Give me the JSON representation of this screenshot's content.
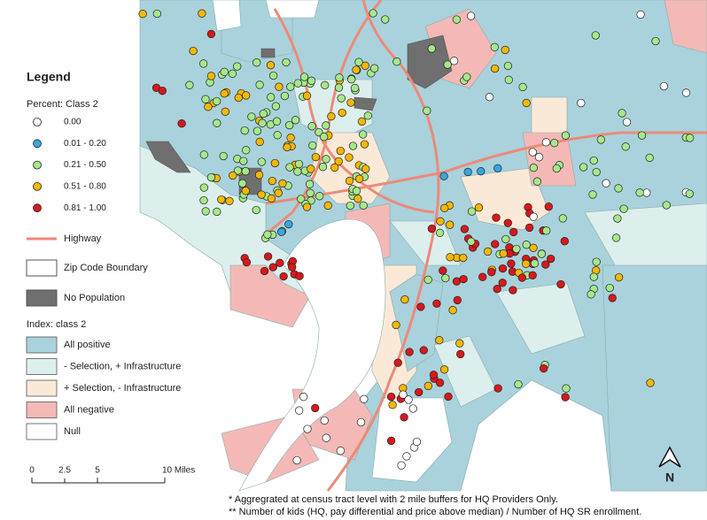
{
  "legend": {
    "title": "Legend",
    "percent_title": "Percent: Class 2",
    "percent_classes": [
      {
        "label": "0.00",
        "color": "#ffffff"
      },
      {
        "label": "0.01 - 0.20",
        "color": "#3aa6dd"
      },
      {
        "label": "0.21 - 0.50",
        "color": "#a6e88a"
      },
      {
        "label": "0.51 - 0.80",
        "color": "#f5b800"
      },
      {
        "label": "0.81 - 1.00",
        "color": "#d7191c"
      }
    ],
    "highway": {
      "label": "Highway",
      "color": "#ec8a78"
    },
    "zip": {
      "label": "Zip Code Boundary",
      "color": "#ffffff"
    },
    "no_population": {
      "label": "No Population",
      "color": "#6f6f6f"
    },
    "index_title": "Index: class 2",
    "index_classes": [
      {
        "label": "All positive",
        "color": "#a9d2dc"
      },
      {
        "label": "- Selection, + Infrastructure",
        "color": "#dcefed"
      },
      {
        "label": "+ Selection, - Infrastructure",
        "color": "#fbe9d8"
      },
      {
        "label": "All negative",
        "color": "#f4b9b6"
      },
      {
        "label": "Null",
        "color": "#ffffff"
      }
    ]
  },
  "scale_bar": {
    "labels": [
      "0",
      "2.5",
      "5",
      "10 Miles"
    ]
  },
  "north_arrow": "N",
  "footnotes": [
    "* Aggregrated at census tract level with 2 mile buffers for HQ Providers Only.",
    "** Number of kids (HQ, pay differential and price above median) / Number of HQ SR enrollment."
  ]
}
